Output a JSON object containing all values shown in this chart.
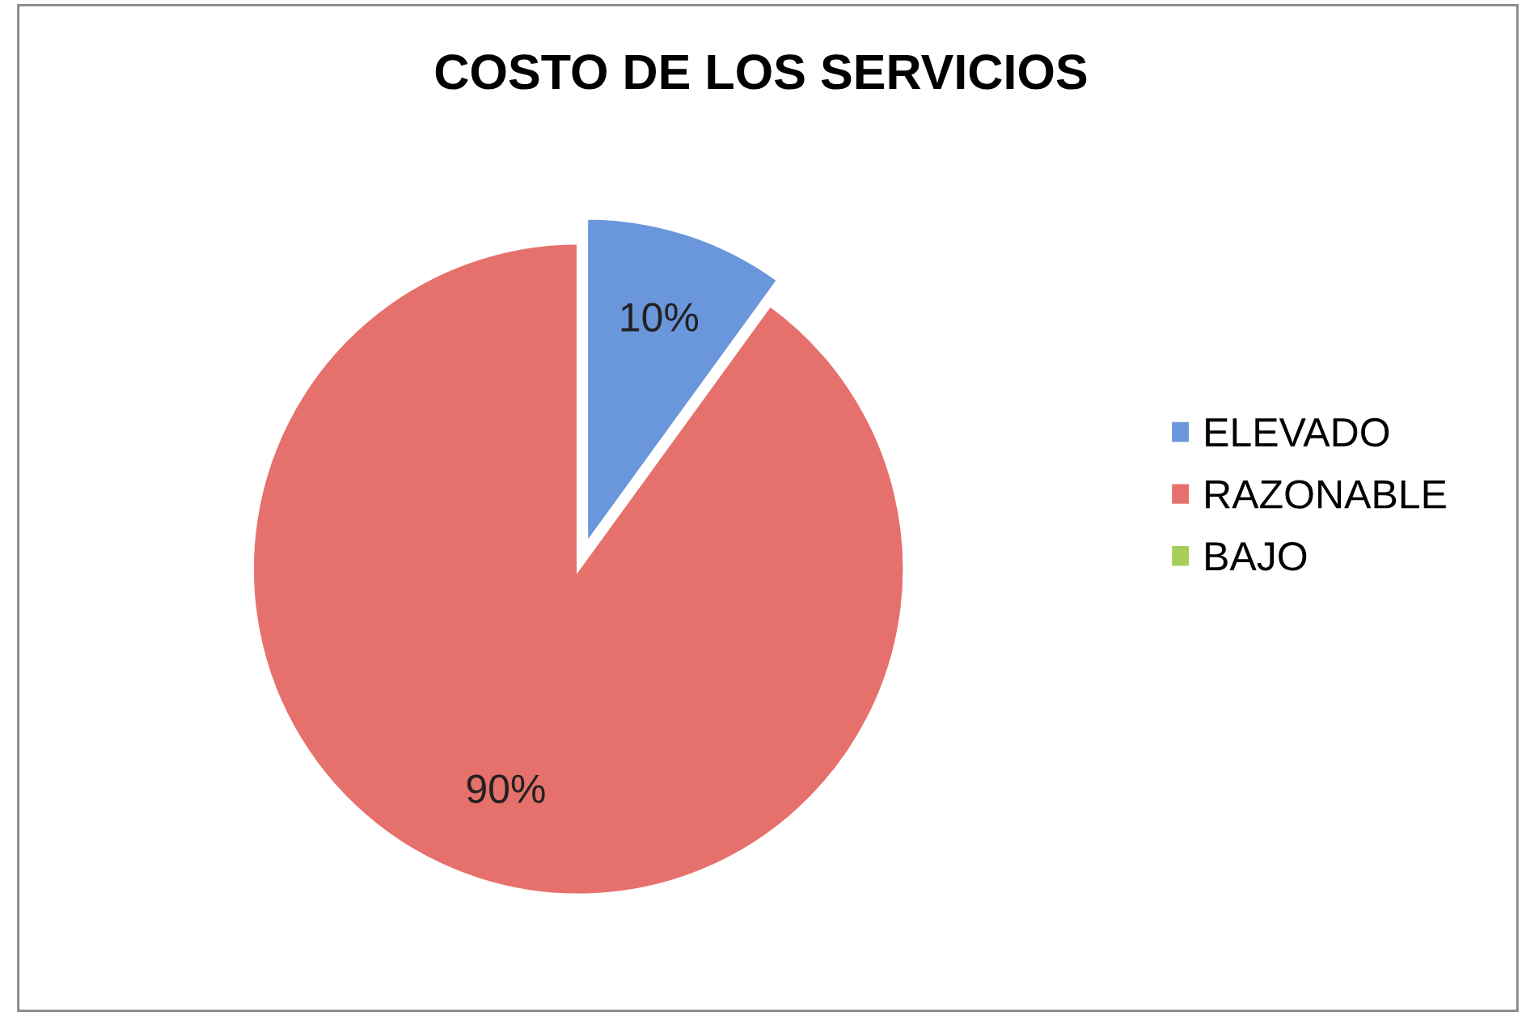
{
  "chart_data": {
    "type": "pie",
    "title": "COSTO DE LOS SERVICIOS",
    "categories": [
      "ELEVADO",
      "RAZONABLE",
      "BAJO"
    ],
    "values": [
      10,
      90,
      0
    ],
    "colors": [
      "#6a96dc",
      "#e6716c",
      "#a5cf5a"
    ],
    "value_labels": [
      "10%",
      "90%",
      null
    ],
    "legend": "right"
  }
}
